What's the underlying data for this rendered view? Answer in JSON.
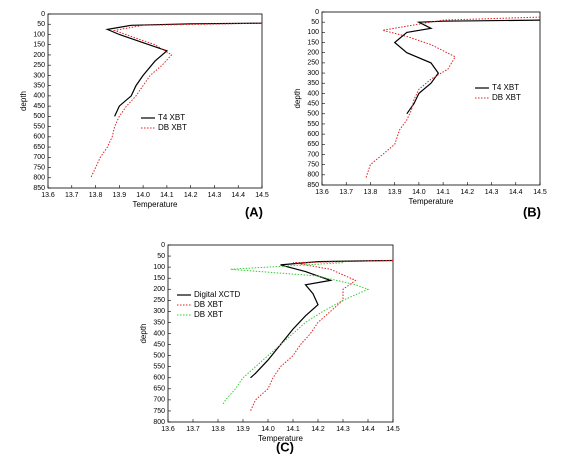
{
  "chart_data": [
    {
      "type": "line",
      "label": "(A)",
      "xlabel": "Temperature",
      "ylabel": "depth",
      "xlim": [
        13.6,
        14.5
      ],
      "ylim": [
        0,
        850
      ],
      "invert_y": true,
      "legend": "center right",
      "xticks": [
        13.6,
        13.7,
        13.8,
        13.9,
        {
          "value": 14.0,
          "label": "14.0"
        },
        14.1,
        14.2,
        14.3,
        14.4,
        14.5
      ],
      "yticks": [
        0,
        50,
        100,
        150,
        200,
        250,
        300,
        350,
        400,
        450,
        500,
        550,
        600,
        650,
        700,
        750,
        800,
        850
      ],
      "series": [
        {
          "name": "T4 XBT",
          "color": "#000000",
          "dash": "solid",
          "x": [
            14.5,
            14.2,
            13.95,
            13.85,
            13.9,
            14.0,
            14.1,
            14.05,
            14.0,
            13.97,
            13.95,
            13.9,
            13.88
          ],
          "values": [
            45,
            48,
            55,
            75,
            100,
            140,
            180,
            230,
            300,
            350,
            400,
            450,
            500
          ]
        },
        {
          "name": "DB XBT",
          "color": "#e02020",
          "dash": "dotted",
          "x": [
            14.5,
            14.0,
            13.88,
            13.95,
            14.05,
            14.12,
            14.08,
            14.03,
            14.0,
            13.97,
            13.93,
            13.9,
            13.88,
            13.87,
            13.85,
            13.82,
            13.8,
            13.78
          ],
          "values": [
            45,
            55,
            80,
            110,
            150,
            200,
            250,
            300,
            350,
            400,
            450,
            500,
            550,
            600,
            650,
            700,
            750,
            800
          ]
        }
      ]
    },
    {
      "type": "line",
      "label": "(B)",
      "xlabel": "Temperature",
      "ylabel": "depth",
      "xlim": [
        13.6,
        14.5
      ],
      "ylim": [
        0,
        850
      ],
      "invert_y": true,
      "legend": "upper right",
      "xticks": [
        13.6,
        13.7,
        13.8,
        13.9,
        {
          "value": 14.0,
          "label": "14.0"
        },
        14.1,
        14.2,
        14.3,
        14.4,
        14.5
      ],
      "yticks": [
        0,
        50,
        100,
        150,
        200,
        250,
        300,
        350,
        400,
        450,
        500,
        550,
        600,
        650,
        700,
        750,
        800,
        850
      ],
      "series": [
        {
          "name": "T4 XBT",
          "color": "#000000",
          "dash": "solid",
          "x": [
            14.5,
            14.1,
            14.0,
            14.05,
            13.95,
            13.9,
            13.95,
            14.05,
            14.08,
            14.05,
            14.0,
            13.98,
            13.95
          ],
          "values": [
            40,
            45,
            50,
            80,
            100,
            150,
            200,
            250,
            300,
            350,
            400,
            450,
            500
          ]
        },
        {
          "name": "DB XBT",
          "color": "#e02020",
          "dash": "dotted",
          "x": [
            14.5,
            14.1,
            13.85,
            13.95,
            14.05,
            14.15,
            14.12,
            14.05,
            14.0,
            13.98,
            13.97,
            13.95,
            13.92,
            13.9,
            13.85,
            13.8,
            13.78
          ],
          "values": [
            25,
            40,
            90,
            120,
            160,
            220,
            280,
            330,
            380,
            430,
            480,
            530,
            580,
            650,
            700,
            750,
            820
          ]
        }
      ]
    },
    {
      "type": "line",
      "label": "(C)",
      "xlabel": "Temperature",
      "ylabel": "depth",
      "xlim": [
        13.6,
        14.5
      ],
      "ylim": [
        0,
        800
      ],
      "invert_y": true,
      "legend": "upper left",
      "xticks": [
        13.6,
        13.7,
        13.8,
        13.9,
        {
          "value": 14.0,
          "label": "14.0"
        },
        14.1,
        14.2,
        14.3,
        14.4,
        14.5
      ],
      "yticks": [
        0,
        50,
        100,
        150,
        200,
        250,
        300,
        350,
        400,
        450,
        500,
        550,
        600,
        650,
        700,
        750,
        800
      ],
      "series": [
        {
          "name": "Digital XCTD",
          "color": "#000000",
          "dash": "solid",
          "x": [
            14.5,
            14.2,
            14.05,
            14.15,
            14.25,
            14.15,
            14.18,
            14.2,
            14.15,
            14.1,
            14.05,
            14.0,
            13.95,
            13.93
          ],
          "values": [
            70,
            75,
            90,
            120,
            160,
            180,
            220,
            270,
            320,
            380,
            450,
            520,
            580,
            600
          ]
        },
        {
          "name": "DB XBT",
          "color": "#e02020",
          "dash": "dotted",
          "x": [
            14.5,
            14.1,
            14.25,
            14.35,
            14.3,
            14.3,
            14.25,
            14.2,
            14.17,
            14.13,
            14.1,
            14.05,
            14.02,
            14.0,
            13.95,
            13.93
          ],
          "values": [
            70,
            80,
            110,
            160,
            200,
            250,
            300,
            350,
            400,
            450,
            500,
            550,
            600,
            650,
            700,
            750
          ]
        },
        {
          "name": "DB XBT",
          "color": "#33cc33",
          "dash": "dotted",
          "x": [
            14.3,
            13.85,
            14.2,
            14.35,
            14.4,
            14.3,
            14.22,
            14.15,
            14.1,
            14.05,
            14.0,
            13.95,
            13.9,
            13.87,
            13.83,
            13.82
          ],
          "values": [
            80,
            110,
            140,
            180,
            200,
            250,
            300,
            350,
            400,
            450,
            500,
            550,
            600,
            650,
            700,
            720
          ]
        }
      ]
    }
  ]
}
